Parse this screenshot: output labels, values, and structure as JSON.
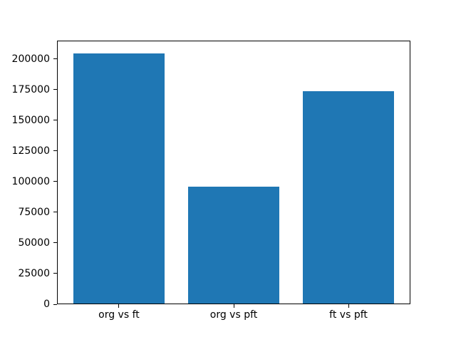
{
  "chart_data": {
    "type": "bar",
    "title": "",
    "xlabel": "",
    "ylabel": "",
    "categories": [
      "org vs ft",
      "org vs pft",
      "ft vs pft"
    ],
    "values": [
      204700,
      95900,
      173800
    ],
    "yticks": [
      0,
      25000,
      50000,
      75000,
      100000,
      125000,
      150000,
      175000,
      200000
    ],
    "ylim": [
      0,
      214900
    ],
    "xlim": [
      -0.54,
      2.54
    ],
    "bar_width_fraction": 0.8,
    "bar_color": "#1f77b4",
    "axis_color": "#000000",
    "text_color": "#000000",
    "background_color": "#ffffff",
    "grid": false,
    "legend": "none"
  }
}
